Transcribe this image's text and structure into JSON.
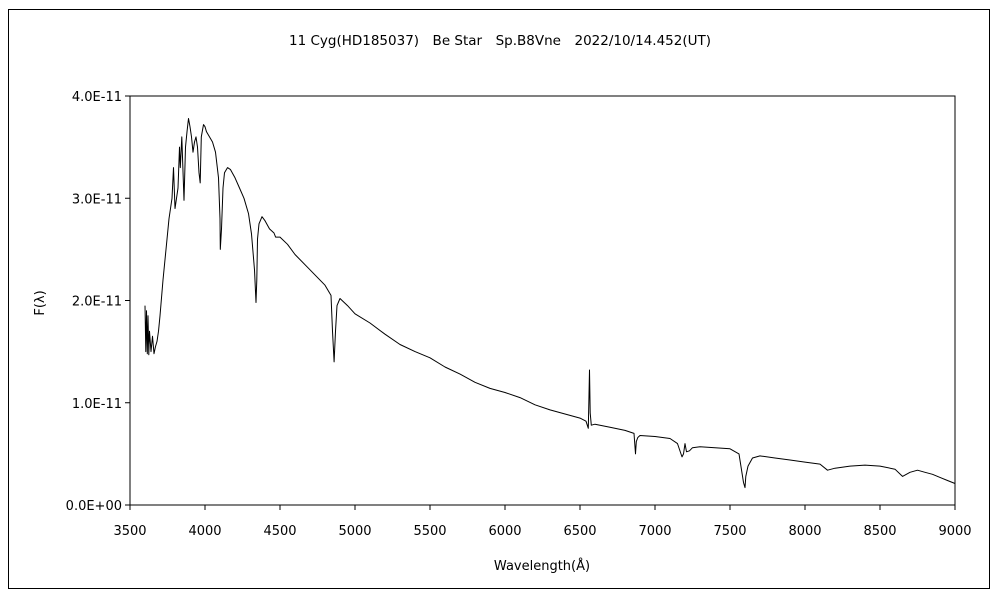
{
  "chart_data": {
    "type": "line",
    "title": "11 Cyg(HD185037)　Be Star　Sp.B8Vne　2022/10/14.452(UT)",
    "xlabel": "Wavelength(Å)",
    "ylabel": "F(λ)",
    "xlim": [
      3500,
      9000
    ],
    "ylim": [
      0,
      4e-11
    ],
    "grid": false,
    "legend": "none",
    "x_ticks": [
      3500,
      4000,
      4500,
      5000,
      5500,
      6000,
      6500,
      7000,
      7500,
      8000,
      8500,
      9000
    ],
    "x_tick_labels": [
      "3500",
      "4000",
      "4500",
      "5000",
      "5500",
      "6000",
      "6500",
      "7000",
      "7500",
      "8000",
      "8500",
      "9000"
    ],
    "y_ticks": [
      0,
      1e-11,
      2e-11,
      3e-11,
      4e-11
    ],
    "y_tick_labels": [
      "0.0E+00",
      "1.0E-11",
      "2.0E-11",
      "3.0E-11",
      "4.0E-11"
    ],
    "line_color": "#000000",
    "series": [
      {
        "x": [
          3600,
          3605,
          3610,
          3615,
          3620,
          3625,
          3630,
          3640,
          3650,
          3660,
          3670,
          3680,
          3690,
          3700,
          3720,
          3740,
          3760,
          3780,
          3790,
          3800,
          3810,
          3820,
          3830,
          3835,
          3845,
          3860,
          3870,
          3880,
          3885,
          3890,
          3900,
          3910,
          3920,
          3930,
          3940,
          3950,
          3960,
          3968,
          3975,
          3990,
          4000,
          4010,
          4030,
          4050,
          4070,
          4090,
          4100,
          4102,
          4110,
          4120,
          4130,
          4150,
          4170,
          4200,
          4230,
          4260,
          4290,
          4310,
          4330,
          4340,
          4345,
          4350,
          4360,
          4380,
          4400,
          4430,
          4460,
          4471,
          4500,
          4550,
          4600,
          4700,
          4800,
          4840,
          4850,
          4855,
          4861,
          4870,
          4880,
          4900,
          4950,
          5000,
          5100,
          5200,
          5300,
          5400,
          5500,
          5600,
          5700,
          5800,
          5900,
          6000,
          6100,
          6200,
          6300,
          6400,
          6500,
          6540,
          6555,
          6560,
          6563,
          6568,
          6575,
          6600,
          6700,
          6800,
          6860,
          6870,
          6875,
          6885,
          6900,
          7000,
          7100,
          7150,
          7180,
          7190,
          7200,
          7210,
          7230,
          7250,
          7300,
          7400,
          7500,
          7560,
          7590,
          7600,
          7605,
          7620,
          7650,
          7700,
          7800,
          7900,
          8000,
          8100,
          8150,
          8200,
          8300,
          8400,
          8500,
          8600,
          8650,
          8700,
          8750,
          8800,
          8850,
          8900,
          8950,
          9000
        ],
        "y": [
          1.95e-11,
          1.5e-11,
          1.9e-11,
          1.48e-11,
          1.85e-11,
          1.47e-11,
          1.7e-11,
          1.5e-11,
          1.65e-11,
          1.48e-11,
          1.55e-11,
          1.6e-11,
          1.7e-11,
          1.85e-11,
          2.2e-11,
          2.5e-11,
          2.8e-11,
          3e-11,
          3.3e-11,
          2.9e-11,
          3e-11,
          3.1e-11,
          3.5e-11,
          3.3e-11,
          3.6e-11,
          2.98e-11,
          3.5e-11,
          3.65e-11,
          3.72e-11,
          3.78e-11,
          3.7e-11,
          3.6e-11,
          3.45e-11,
          3.55e-11,
          3.6e-11,
          3.5e-11,
          3.25e-11,
          3.15e-11,
          3.6e-11,
          3.72e-11,
          3.7e-11,
          3.65e-11,
          3.6e-11,
          3.55e-11,
          3.45e-11,
          3.2e-11,
          2.8e-11,
          2.5e-11,
          2.7e-11,
          3.1e-11,
          3.25e-11,
          3.3e-11,
          3.28e-11,
          3.2e-11,
          3.1e-11,
          3e-11,
          2.85e-11,
          2.65e-11,
          2.3e-11,
          1.98e-11,
          2.2e-11,
          2.6e-11,
          2.75e-11,
          2.82e-11,
          2.78e-11,
          2.7e-11,
          2.66e-11,
          2.62e-11,
          2.62e-11,
          2.55e-11,
          2.45e-11,
          2.3e-11,
          2.15e-11,
          2.05e-11,
          1.7e-11,
          1.55e-11,
          1.4e-11,
          1.7e-11,
          1.95e-11,
          2.02e-11,
          1.95e-11,
          1.87e-11,
          1.78e-11,
          1.67e-11,
          1.57e-11,
          1.5e-11,
          1.44e-11,
          1.35e-11,
          1.28e-11,
          1.2e-11,
          1.14e-11,
          1.1e-11,
          1.05e-11,
          9.8e-12,
          9.3e-12,
          8.9e-12,
          8.5e-12,
          8.2e-12,
          7.5e-12,
          1.08e-11,
          1.32e-11,
          9e-12,
          7.8e-12,
          7.9e-12,
          7.6e-12,
          7.3e-12,
          7e-12,
          5e-12,
          6.2e-12,
          6.6e-12,
          6.8e-12,
          6.7e-12,
          6.5e-12,
          6e-12,
          4.7e-12,
          5e-12,
          6e-12,
          5.2e-12,
          5.3e-12,
          5.6e-12,
          5.7e-12,
          5.6e-12,
          5.5e-12,
          5e-12,
          2.2e-12,
          1.7e-12,
          2.8e-12,
          3.8e-12,
          4.6e-12,
          4.8e-12,
          4.6e-12,
          4.4e-12,
          4.2e-12,
          4e-12,
          3.4e-12,
          3.6e-12,
          3.8e-12,
          3.9e-12,
          3.8e-12,
          3.5e-12,
          2.8e-12,
          3.2e-12,
          3.4e-12,
          3.2e-12,
          3e-12,
          2.7e-12,
          2.4e-12,
          2.1e-12
        ]
      }
    ]
  }
}
